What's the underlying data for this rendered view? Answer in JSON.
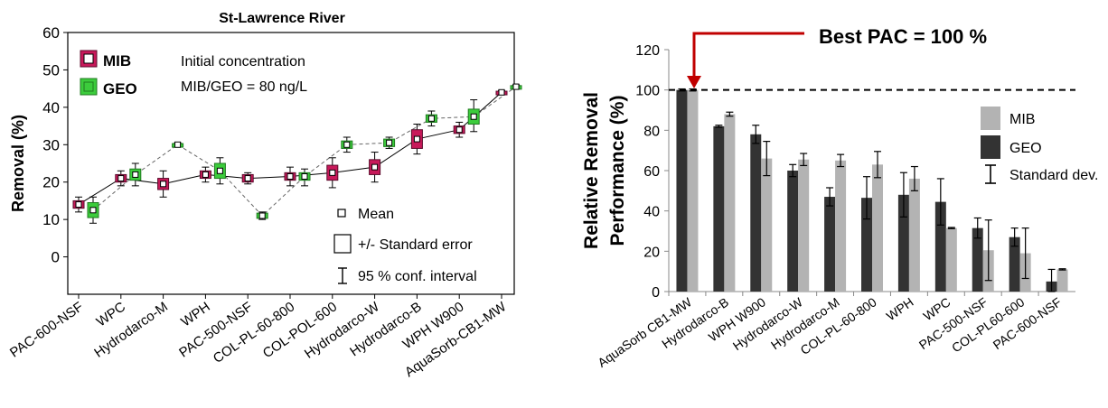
{
  "chart_data": [
    {
      "type": "line",
      "title": "St-Lawrence River",
      "xlabel": "",
      "ylabel": "Removal (%)",
      "ylim": [
        -10,
        60
      ],
      "yticks": [
        0,
        10,
        20,
        30,
        40,
        50,
        60
      ],
      "categories": [
        "PAC-600-NSF",
        "WPC",
        "Hydrodarco-M",
        "WPH",
        "PAC-500-NSF",
        "COL-PL-60-800",
        "COL-POL-600",
        "Hydrodarco-W",
        "Hydrodarco-B",
        "WPH W900",
        "AquaSorb-CB1-MW"
      ],
      "series": [
        {
          "name": "MIB",
          "color": "#c8195a",
          "mean": [
            14,
            21,
            19.5,
            22,
            21,
            21.5,
            22.5,
            24,
            31.5,
            34,
            44
          ],
          "se_low": [
            13,
            20,
            18,
            21,
            20,
            20.5,
            20.5,
            22,
            29,
            33,
            43.7
          ],
          "se_high": [
            15,
            22,
            21,
            23,
            22,
            22.5,
            24.5,
            26,
            34,
            35,
            44.3
          ],
          "ci_low": [
            12,
            19,
            16,
            20,
            19.5,
            19,
            18.5,
            20,
            27.5,
            32,
            43.5
          ],
          "ci_high": [
            16,
            23,
            23,
            24,
            22.5,
            24,
            26.5,
            28,
            35.5,
            36,
            44.5
          ]
        },
        {
          "name": "GEO",
          "color": "#3ccc3c",
          "mean": [
            12.5,
            22,
            30,
            23,
            11,
            21.5,
            30,
            30.5,
            37,
            37.5,
            45.5
          ],
          "se_low": [
            10.5,
            20.5,
            29.7,
            21,
            10.3,
            20.5,
            29,
            29.5,
            36,
            35.5,
            45.2
          ],
          "se_high": [
            14.5,
            23.5,
            30.3,
            25,
            11.7,
            22.5,
            31,
            31.5,
            38,
            39.5,
            45.8
          ],
          "ci_low": [
            9,
            19,
            29.5,
            19.5,
            10,
            19,
            28,
            29,
            35,
            33.5,
            45
          ],
          "ci_high": [
            16,
            25,
            30.5,
            26.5,
            12,
            23.5,
            32,
            32,
            39,
            42,
            46
          ]
        }
      ],
      "legend_series": [
        {
          "label": "MIB",
          "color": "#c8195a"
        },
        {
          "label": "GEO",
          "color": "#3ccc3c"
        }
      ],
      "note_lines": [
        "Initial concentration",
        "MIB/GEO = 80 ng/L"
      ],
      "legend_stats": [
        "Mean",
        "+/- Standard error",
        "95 % conf. interval"
      ],
      "legend_position": "top-left"
    },
    {
      "type": "bar",
      "title": "",
      "ylabel_lines": [
        "Relative Removal",
        "Performance (%)"
      ],
      "ylim": [
        0,
        120
      ],
      "yticks": [
        0,
        20,
        40,
        60,
        80,
        100,
        120
      ],
      "reference_line": 100,
      "annotation": "Best PAC = 100 %",
      "categories": [
        "AquaSorb CB1-MW",
        "Hydrodarco-B",
        "WPH W900",
        "Hydrodarco-W",
        "Hydrodarco-M",
        "COL-PL-60-800",
        "WPH",
        "WPC",
        "PAC-500-NSF",
        "COL-PL60-600",
        "PAC-600-NSF"
      ],
      "series": [
        {
          "name": "GEO",
          "color": "#333333",
          "values": [
            100,
            82,
            78,
            60,
            47,
            46.5,
            48,
            44.5,
            31.5,
            27,
            5
          ],
          "err": [
            0.5,
            0.5,
            4.5,
            3,
            4.5,
            10.5,
            11,
            11.5,
            5,
            4.5,
            6
          ]
        },
        {
          "name": "MIB",
          "color": "#b3b3b3",
          "values": [
            100,
            88,
            66,
            65.5,
            65,
            63,
            56,
            31.5,
            20.5,
            19,
            11
          ],
          "err": [
            0.5,
            1,
            8.5,
            3,
            3,
            6.5,
            6,
            0.3,
            15,
            12.5,
            0.3
          ]
        }
      ],
      "legend": [
        {
          "label": "MIB",
          "color": "#b3b3b3"
        },
        {
          "label": "GEO",
          "color": "#333333"
        },
        {
          "label": "Standard dev.",
          "color": "#000000"
        }
      ],
      "legend_position": "right"
    }
  ]
}
